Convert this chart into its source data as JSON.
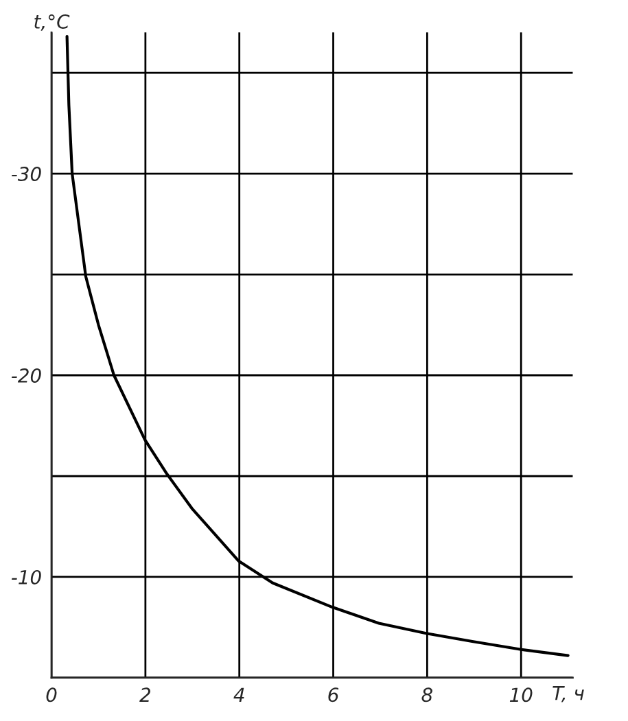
{
  "chart_data": {
    "type": "line",
    "xlabel": "T, ч",
    "ylabel": "t,°C",
    "x": [
      0.33,
      0.37,
      0.44,
      0.73,
      1.0,
      1.33,
      1.99,
      2.46,
      2.99,
      3.98,
      4.71,
      5.98,
      6.97,
      7.98,
      8.96,
      10.0,
      11.0
    ],
    "series": [
      {
        "color": "#000000",
        "values": [
          -36.8,
          -33.4,
          -30,
          -24.9,
          -22.5,
          -20,
          -16.8,
          -15.1,
          -13.4,
          -10.8,
          -9.7,
          -8.5,
          -7.7,
          -7.2,
          -6.8,
          -6.4,
          -6.1
        ]
      }
    ],
    "xlim": [
      0,
      11.1
    ],
    "ylim": [
      -5,
      -37
    ],
    "xticks": [
      0,
      2,
      4,
      6,
      8,
      10
    ],
    "yticks": [
      {
        "value": -35,
        "label": null
      },
      -30,
      {
        "value": -25,
        "label": null
      },
      -20,
      {
        "value": -15,
        "label": null
      },
      -10,
      {
        "value": -5,
        "label": null
      }
    ],
    "grid": true,
    "marker": "none",
    "line_style": "solid"
  }
}
